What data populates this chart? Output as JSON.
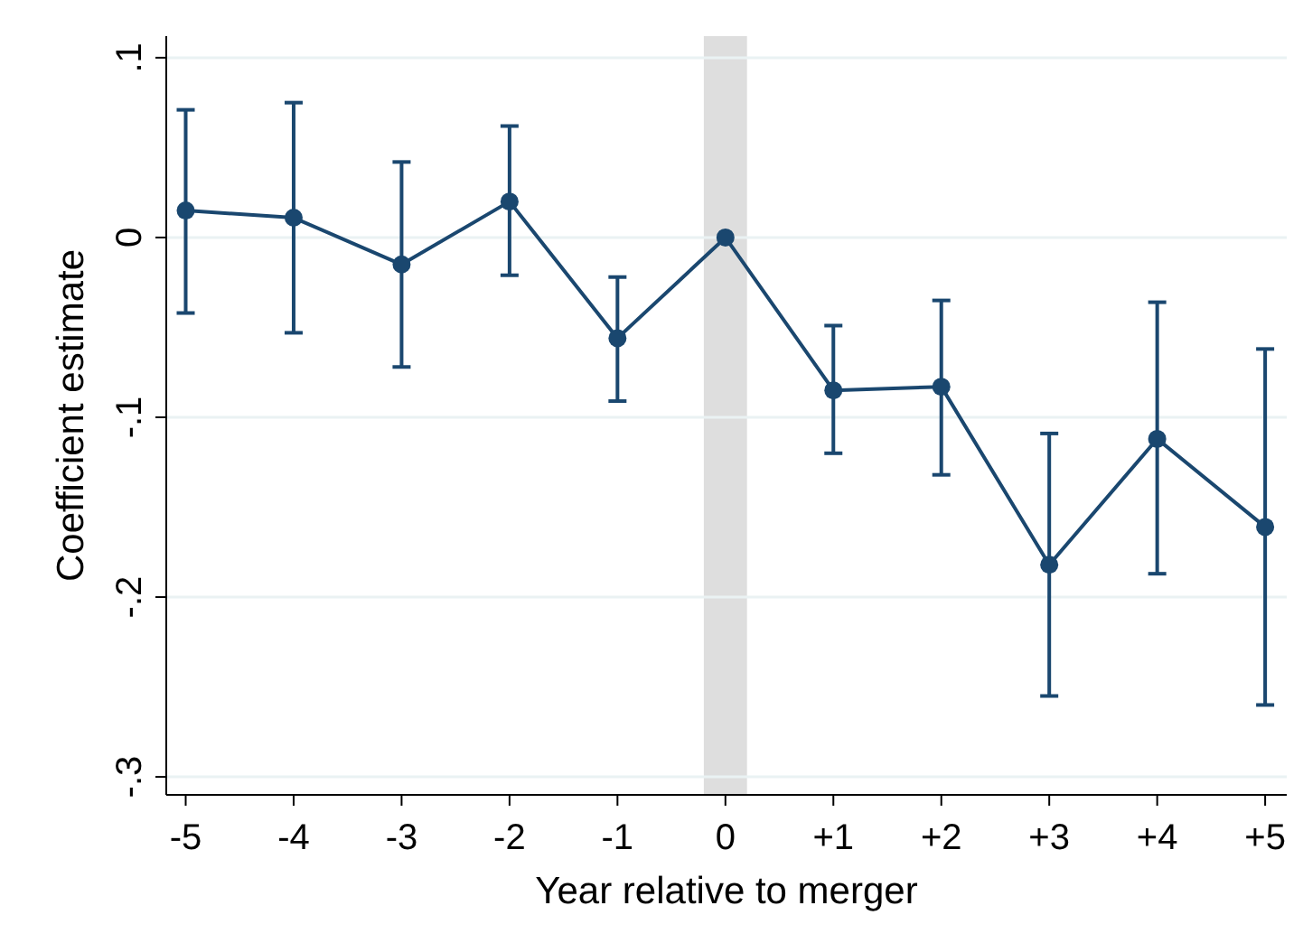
{
  "chart_data": {
    "type": "line",
    "xlabel": "Year relative to merger",
    "ylabel": "Coefficient estimate",
    "x": [
      -5,
      -4,
      -3,
      -2,
      -1,
      0,
      1,
      2,
      3,
      4,
      5
    ],
    "series": [
      {
        "color": "#1a476f",
        "values": [
          0.015,
          0.011,
          -0.015,
          0.02,
          -0.056,
          0,
          -0.085,
          -0.083,
          -0.182,
          -0.112,
          -0.161
        ],
        "errors": [
          [
            -0.042,
            0.071
          ],
          [
            -0.053,
            0.075
          ],
          [
            -0.072,
            0.042
          ],
          [
            -0.021,
            0.062
          ],
          [
            -0.091,
            -0.022
          ],
          null,
          [
            -0.12,
            -0.049
          ],
          [
            -0.132,
            -0.035
          ],
          [
            -0.255,
            -0.109
          ],
          [
            -0.187,
            -0.036
          ],
          [
            -0.26,
            -0.062
          ]
        ]
      }
    ],
    "xlim": [
      -5.18,
      5.2
    ],
    "xticks": [
      -5,
      -4,
      -3,
      -2,
      -1,
      0,
      {
        "value": 1,
        "label": "+1"
      },
      {
        "value": 2,
        "label": "+2"
      },
      {
        "value": 3,
        "label": "+3"
      },
      {
        "value": 4,
        "label": "+4"
      },
      {
        "value": 5,
        "label": "+5"
      }
    ],
    "ylim": [
      -0.31,
      0.112
    ],
    "yticks": [
      {
        "value": -0.3,
        "label": "-.3"
      },
      {
        "value": -0.2,
        "label": "-.2"
      },
      {
        "value": -0.1,
        "label": "-.1"
      },
      0,
      {
        "value": 0.1,
        "label": ".1"
      }
    ],
    "bands": [
      {
        "axis": "x",
        "from": -0.2,
        "to": 0.2,
        "color": "#dedede"
      }
    ],
    "grid": "y",
    "marker": "circle",
    "line_style": "solid"
  }
}
